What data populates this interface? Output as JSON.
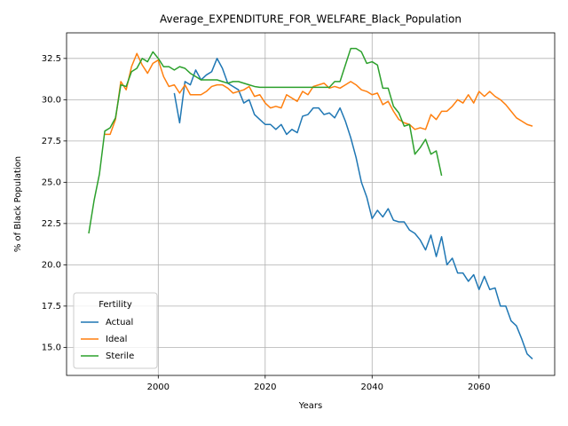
{
  "chart_data": {
    "type": "line",
    "title": "Average_EXPENDITURE_FOR_WELFARE_Black_Population",
    "x_label": "Years",
    "y_label": "% of Black Population",
    "x": [
      1987,
      1988,
      1989,
      1990,
      1991,
      1992,
      1993,
      1994,
      1995,
      1996,
      1997,
      1998,
      1999,
      2000,
      2001,
      2002,
      2003,
      2004,
      2005,
      2006,
      2007,
      2008,
      2009,
      2010,
      2011,
      2012,
      2013,
      2014,
      2015,
      2016,
      2017,
      2018,
      2019,
      2020,
      2021,
      2022,
      2023,
      2024,
      2025,
      2026,
      2027,
      2028,
      2029,
      2030,
      2031,
      2032,
      2033,
      2034,
      2035,
      2036,
      2037,
      2038,
      2039,
      2040,
      2041,
      2042,
      2043,
      2044,
      2045,
      2046,
      2047,
      2048,
      2049,
      2050,
      2051,
      2052,
      2053,
      2054,
      2055,
      2056,
      2057,
      2058,
      2059,
      2060,
      2061,
      2062,
      2063,
      2064,
      2065,
      2066,
      2067,
      2068,
      2069,
      2070
    ],
    "series": [
      {
        "name": "Actual",
        "color": "#1f77b4",
        "values": [
          null,
          null,
          null,
          null,
          null,
          null,
          null,
          null,
          null,
          null,
          null,
          null,
          null,
          null,
          null,
          null,
          30.4,
          28.6,
          31.1,
          30.9,
          31.8,
          31.2,
          31.5,
          31.7,
          32.5,
          31.9,
          31.0,
          30.8,
          30.6,
          29.8,
          30.0,
          29.1,
          28.8,
          28.5,
          28.5,
          28.2,
          28.5,
          27.9,
          28.2,
          28.0,
          29.0,
          29.1,
          29.5,
          29.5,
          29.1,
          29.2,
          28.9,
          29.5,
          28.7,
          27.7,
          26.5,
          25.0,
          24.1,
          22.8,
          23.3,
          22.9,
          23.4,
          22.7,
          22.6,
          22.6,
          22.1,
          21.9,
          21.5,
          20.9,
          21.8,
          20.5,
          21.7,
          20.0,
          20.4,
          19.5,
          19.5,
          19.0,
          19.4,
          18.5,
          19.3,
          18.5,
          18.6,
          17.5,
          17.5,
          16.6,
          16.3,
          15.5,
          14.6,
          14.3
        ]
      },
      {
        "name": "Ideal",
        "color": "#ff7f0e",
        "values": [
          null,
          null,
          null,
          27.9,
          27.9,
          28.8,
          31.1,
          30.6,
          32.0,
          32.8,
          32.1,
          31.6,
          32.2,
          32.4,
          31.4,
          30.8,
          30.9,
          30.4,
          30.9,
          30.3,
          30.3,
          30.3,
          30.5,
          30.8,
          30.9,
          30.9,
          30.7,
          30.4,
          30.5,
          30.6,
          30.8,
          30.2,
          30.3,
          29.8,
          29.5,
          29.6,
          29.5,
          30.3,
          30.1,
          29.9,
          30.5,
          30.3,
          30.8,
          30.9,
          31.0,
          30.7,
          30.8,
          30.7,
          30.9,
          31.1,
          30.9,
          30.6,
          30.5,
          30.3,
          30.4,
          29.7,
          29.9,
          29.3,
          28.8,
          28.6,
          28.5,
          28.2,
          28.3,
          28.2,
          29.1,
          28.8,
          29.3,
          29.3,
          29.6,
          30.0,
          29.8,
          30.3,
          29.8,
          30.5,
          30.2,
          30.5,
          30.2,
          30.0,
          29.7,
          29.3,
          28.9,
          28.7,
          28.5,
          28.4
        ]
      },
      {
        "name": "Sterile",
        "color": "#2ca02c",
        "values": [
          21.9,
          23.9,
          25.5,
          28.1,
          28.3,
          28.9,
          30.9,
          30.8,
          31.7,
          31.9,
          32.5,
          32.3,
          32.9,
          32.5,
          32.0,
          32.0,
          31.8,
          32.0,
          31.9,
          31.6,
          31.4,
          31.2,
          31.2,
          31.2,
          31.2,
          31.1,
          31.0,
          31.1,
          31.1,
          31.0,
          30.9,
          30.8,
          30.75,
          30.75,
          30.75,
          30.75,
          30.75,
          30.75,
          30.75,
          30.75,
          30.75,
          30.75,
          30.75,
          30.75,
          30.75,
          30.75,
          31.1,
          31.1,
          32.1,
          33.1,
          33.1,
          32.9,
          32.2,
          32.3,
          32.1,
          30.7,
          30.7,
          29.6,
          29.2,
          28.4,
          28.5,
          26.7,
          27.1,
          27.6,
          26.7,
          26.9,
          25.4,
          null,
          null,
          null,
          null,
          null,
          null,
          null,
          null,
          null,
          null,
          null,
          null,
          null,
          null,
          null,
          null,
          null
        ]
      }
    ],
    "xlim": [
      1982.85,
      2074.15
    ],
    "ylim": [
      13.3,
      34.05
    ],
    "xticks": [
      2000,
      2020,
      2040,
      2060
    ],
    "yticks": [
      {
        "value": 15,
        "label": "15.0"
      },
      {
        "value": 17.5,
        "label": "17.5"
      },
      {
        "value": 20,
        "label": "20.0"
      },
      {
        "value": 22.5,
        "label": "22.5"
      },
      {
        "value": 25,
        "label": "25.0"
      },
      {
        "value": 27.5,
        "label": "27.5"
      },
      {
        "value": 30,
        "label": "30.0"
      },
      {
        "value": 32.5,
        "label": "32.5"
      }
    ],
    "grid": true,
    "legend_title": "Fertility",
    "legend_position": "lower left"
  }
}
